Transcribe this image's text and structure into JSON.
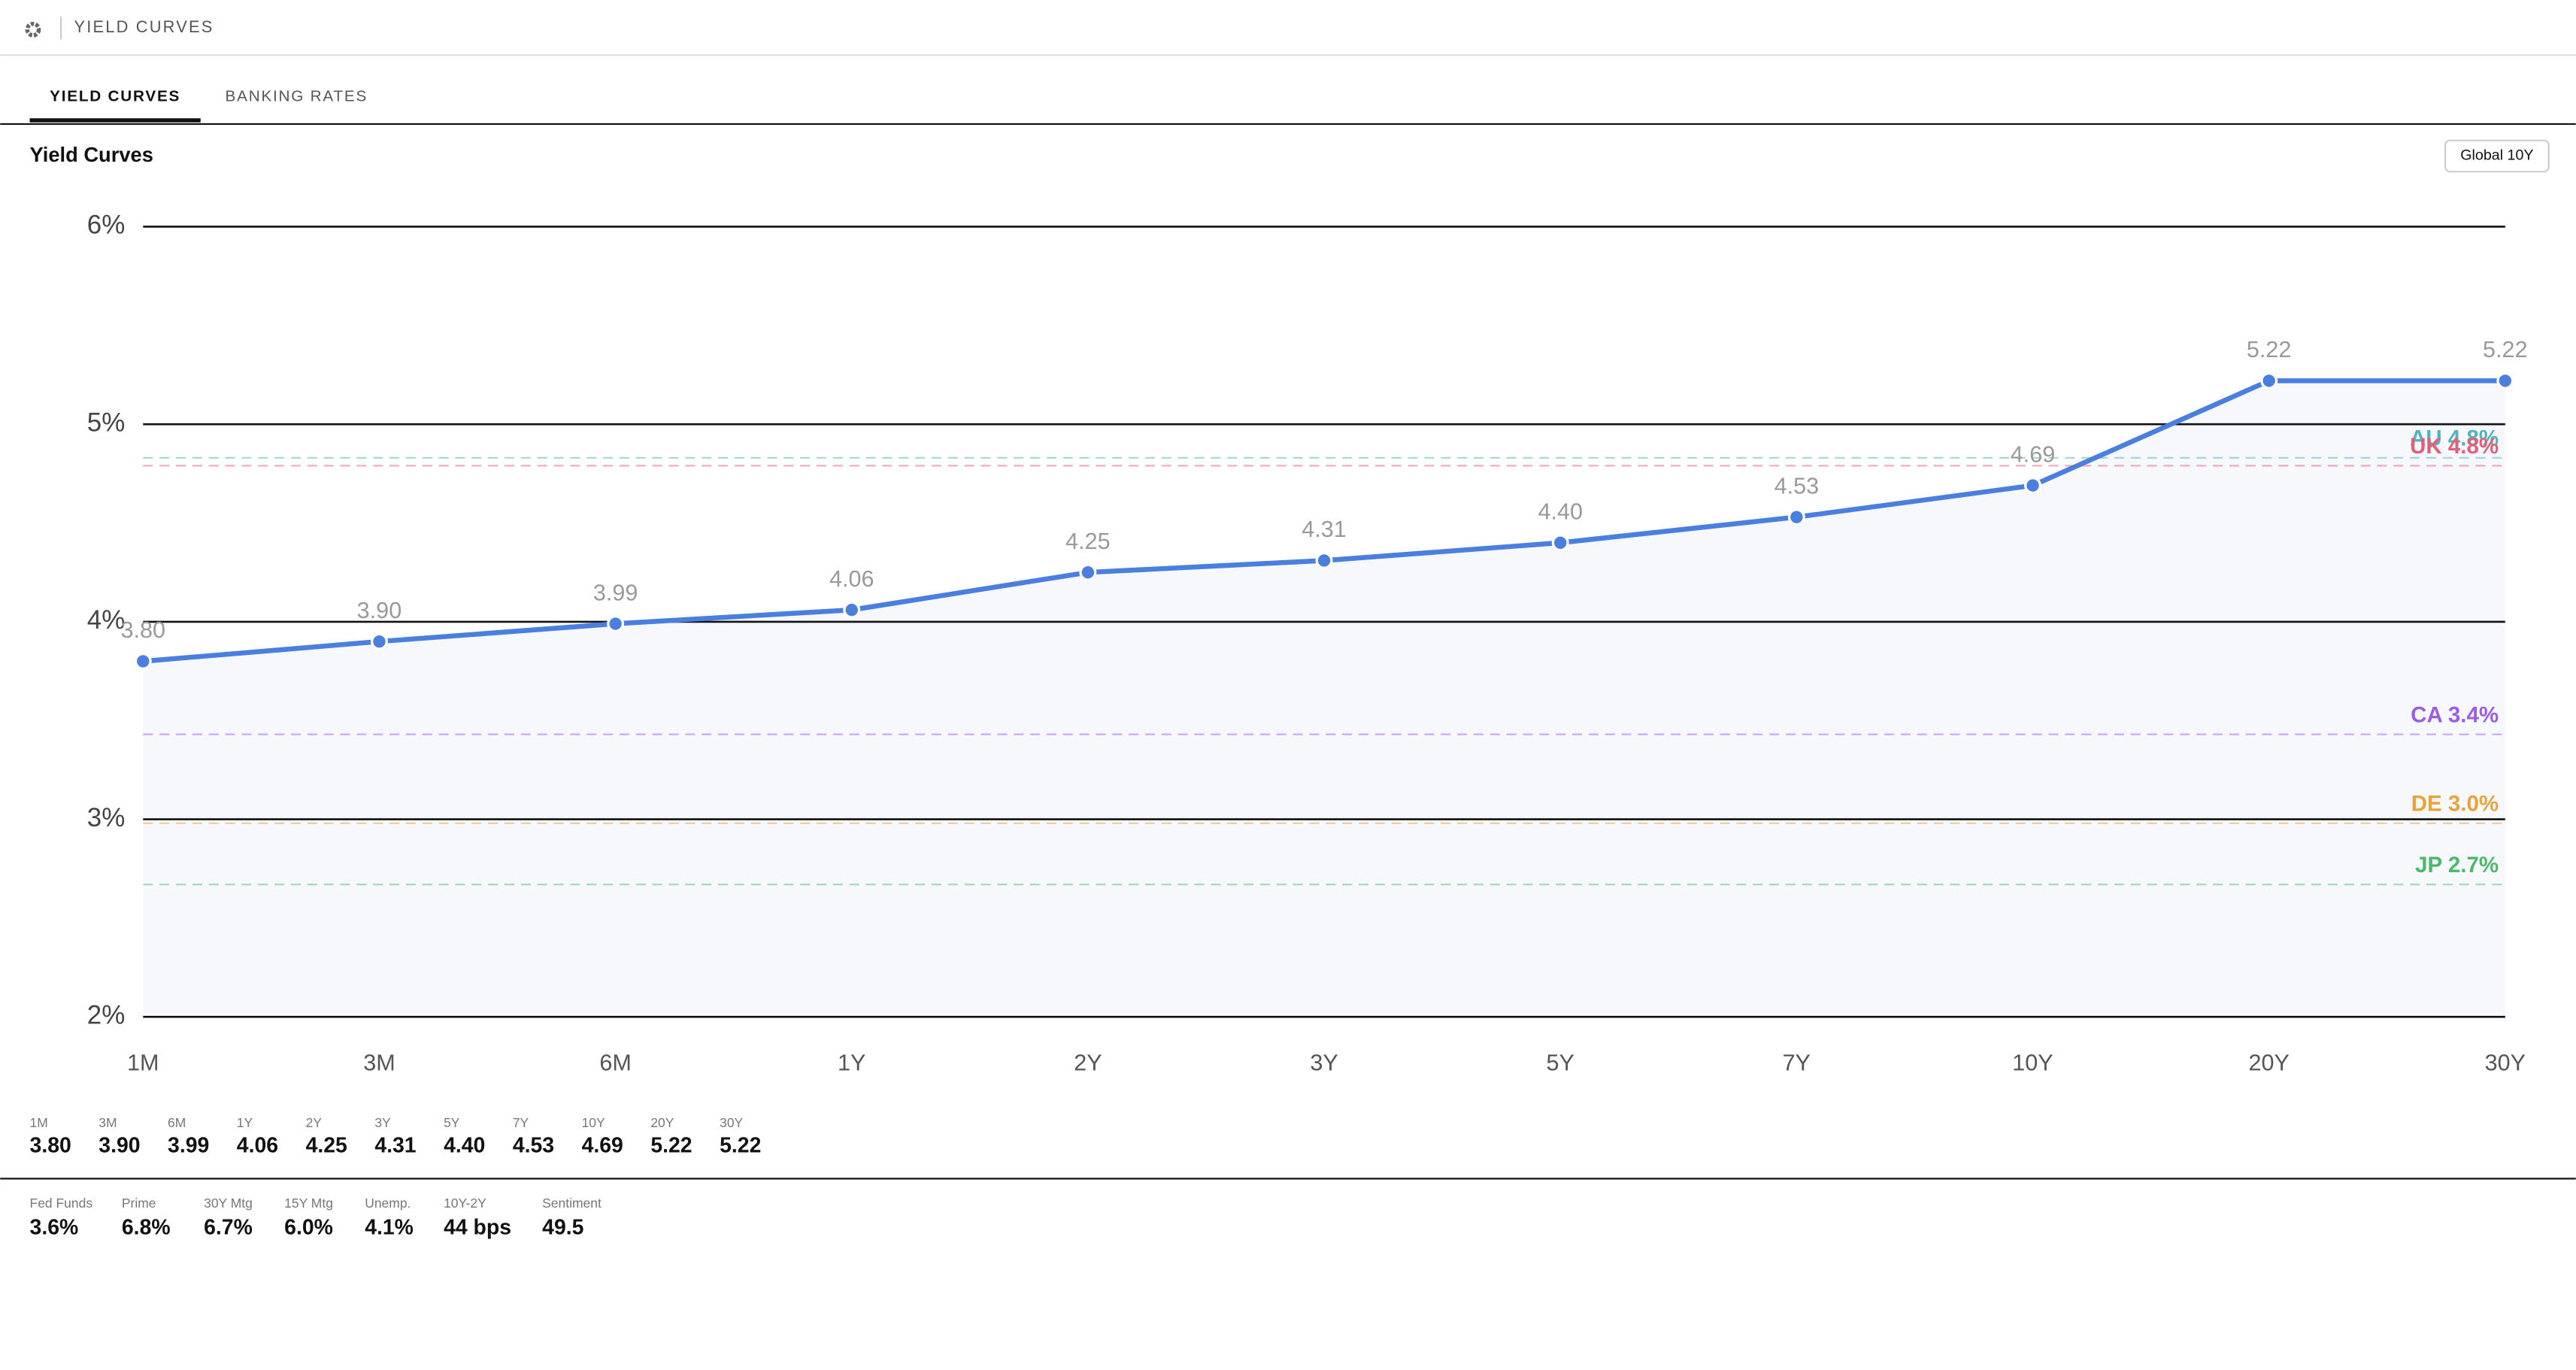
{
  "header": {
    "title": "YIELD CURVES"
  },
  "tabs": [
    "YIELD CURVES",
    "BANKING RATES"
  ],
  "panel": {
    "title": "Yield Curves",
    "button": "Global 10Y"
  },
  "chart_data": {
    "type": "line",
    "categories": [
      "1M",
      "3M",
      "6M",
      "1Y",
      "2Y",
      "3Y",
      "5Y",
      "7Y",
      "10Y",
      "20Y",
      "30Y"
    ],
    "values": [
      3.8,
      3.9,
      3.99,
      4.06,
      4.25,
      4.31,
      4.4,
      4.53,
      4.69,
      5.22,
      5.22
    ],
    "value_labels": [
      "3.80",
      "3.90",
      "3.99",
      "4.06",
      "4.25",
      "4.31",
      "4.40",
      "4.53",
      "4.69",
      "5.22",
      "5.22"
    ],
    "color": "#4a7fe0",
    "ylim": [
      2,
      6
    ],
    "yticks": [
      {
        "value": 2,
        "label": "2%"
      },
      {
        "value": 3,
        "label": "3%"
      },
      {
        "value": 4,
        "label": "4%"
      },
      {
        "value": 5,
        "label": "5%"
      },
      {
        "value": 6,
        "label": "6%"
      }
    ],
    "grid": true,
    "reference_lines": [
      {
        "label": "AU 4.8%",
        "value": 4.83,
        "color": "#4fb3c0"
      },
      {
        "label": "UK 4.8%",
        "value": 4.79,
        "color": "#e0607a"
      },
      {
        "label": "CA 3.4%",
        "value": 3.43,
        "color": "#9b5de5"
      },
      {
        "label": "DE 3.0%",
        "value": 2.98,
        "color": "#e8a33c"
      },
      {
        "label": "JP 2.7%",
        "value": 2.67,
        "color": "#4cb86a"
      }
    ]
  },
  "indicators": [
    {
      "label": "Fed Funds",
      "value": "3.6%"
    },
    {
      "label": "Prime",
      "value": "6.8%"
    },
    {
      "label": "30Y Mtg",
      "value": "6.7%"
    },
    {
      "label": "15Y Mtg",
      "value": "6.0%"
    },
    {
      "label": "Unemp.",
      "value": "4.1%"
    },
    {
      "label": "10Y-2Y",
      "value": "44 bps"
    },
    {
      "label": "Sentiment",
      "value": "49.5"
    }
  ]
}
